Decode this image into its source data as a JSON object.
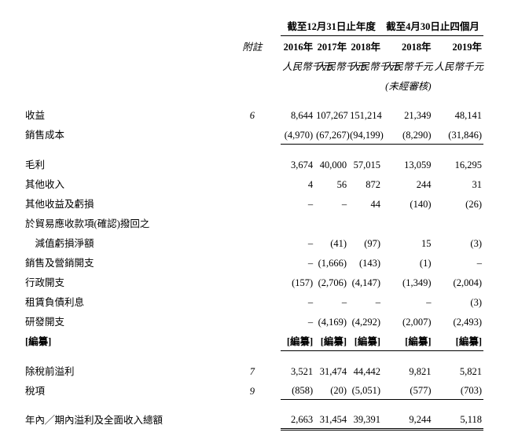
{
  "period_header_year": "截至12月31日止年度",
  "period_header_4mo": "截至4月30日止四個月",
  "col_note": "附註",
  "cols_year": [
    "2016年",
    "2017年",
    "2018年",
    "2018年",
    "2019年"
  ],
  "unit": "人民幣千元",
  "unaudited": "(未經審核)",
  "rows": {
    "r1": {
      "label": "收益",
      "note": "6",
      "v": [
        "8,644",
        "107,267",
        "151,214",
        "21,349",
        "48,141"
      ]
    },
    "r2": {
      "label": "銷售成本",
      "note": "",
      "v": [
        "(4,970)",
        "(67,267)",
        "(94,199)",
        "(8,290)",
        "(31,846)"
      ]
    },
    "r3": {
      "label": "毛利",
      "note": "",
      "v": [
        "3,674",
        "40,000",
        "57,015",
        "13,059",
        "16,295"
      ]
    },
    "r4": {
      "label": "其他收入",
      "note": "",
      "v": [
        "4",
        "56",
        "872",
        "244",
        "31"
      ]
    },
    "r5": {
      "label": "其他收益及虧損",
      "note": "",
      "v": [
        "–",
        "–",
        "44",
        "(140)",
        "(26)"
      ]
    },
    "r6": {
      "label": "於貿易應收款項(確認)撥回之",
      "note": "",
      "v": [
        "",
        "",
        "",
        "",
        ""
      ]
    },
    "r6b": {
      "label": "　減值虧損淨額",
      "note": "",
      "v": [
        "–",
        "(41)",
        "(97)",
        "15",
        "(3)"
      ]
    },
    "r7": {
      "label": "銷售及營銷開支",
      "note": "",
      "v": [
        "–",
        "(1,666)",
        "(143)",
        "(1)",
        "–"
      ]
    },
    "r8": {
      "label": "行政開支",
      "note": "",
      "v": [
        "(157)",
        "(2,706)",
        "(4,147)",
        "(1,349)",
        "(2,004)"
      ]
    },
    "r9": {
      "label": "租賃負債利息",
      "note": "",
      "v": [
        "–",
        "–",
        "–",
        "–",
        "(3)"
      ]
    },
    "r10": {
      "label": "研發開支",
      "note": "",
      "v": [
        "–",
        "(4,169)",
        "(4,292)",
        "(2,007)",
        "(2,493)"
      ]
    },
    "r11": {
      "label": "[編纂]",
      "note": "",
      "v": [
        "[編纂]",
        "[編纂]",
        "[編纂]",
        "[編纂]",
        "[編纂]"
      ]
    },
    "r12": {
      "label": "除稅前溢利",
      "note": "7",
      "v": [
        "3,521",
        "31,474",
        "44,442",
        "9,821",
        "5,821"
      ]
    },
    "r13": {
      "label": "稅項",
      "note": "9",
      "v": [
        "(858)",
        "(20)",
        "(5,051)",
        "(577)",
        "(703)"
      ]
    },
    "r14": {
      "label": "年內╱期內溢利及全面收入總額",
      "note": "",
      "v": [
        "2,663",
        "31,454",
        "39,391",
        "9,244",
        "5,118"
      ]
    }
  },
  "styling": {
    "font_size_pt": 12.5,
    "text_color": "#000000",
    "background": "#ffffff",
    "border_color": "#000000"
  }
}
